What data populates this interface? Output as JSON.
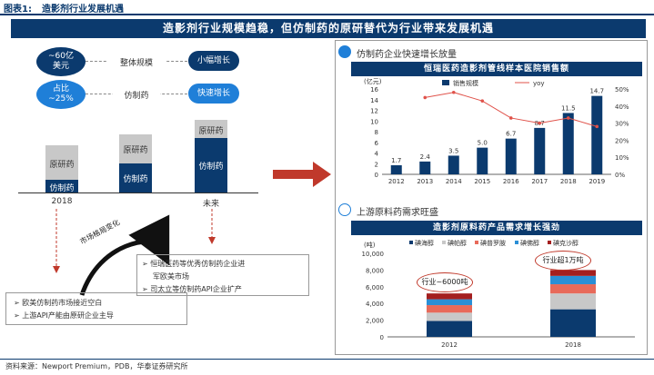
{
  "header": {
    "figure_label": "图表1:",
    "figure_title": "造影剂行业发展机遇",
    "banner": "造影剂行业规模趋稳，但仿制药的原研替代为行业带来发展机遇"
  },
  "left": {
    "oval_1": [
      "~60亿",
      "美元"
    ],
    "row_1_label": "整体规模",
    "pill_1": "小幅增长",
    "oval_2": [
      "占比",
      "~25%"
    ],
    "row_2_label": "仿制药",
    "pill_2": "快速增长",
    "bars": [
      {
        "x_label": "2018",
        "top_label": "原研药",
        "bottom_label": "仿制药"
      },
      {
        "x_label": "",
        "top_label": "原研药",
        "bottom_label": "仿制药"
      },
      {
        "x_label": "未来",
        "top_label": "原研药",
        "bottom_label": "仿制药"
      }
    ],
    "curve_label": "市场格局变化",
    "list_right": [
      "恒瑞医药等优秀仿制药企业进",
      "军欧美市场",
      "司太立等仿制药API企业扩产"
    ],
    "list_left": [
      "欧美仿制药市场接近空白",
      "上游API产能由原研企业主导"
    ],
    "bullet": "➢"
  },
  "right_top": {
    "section_title": "仿制药企业快速增长放量",
    "chart_title": "恒瑞医药造影剂管线样本医院销售额"
  },
  "right_bottom": {
    "section_title": "上游原料药需求旺盛",
    "chart_title": "造影剂原料药产品需求增长强劲",
    "callout_2012": "行业~6000吨",
    "callout_2018": "行业超1万吨"
  },
  "chart_data": [
    {
      "type": "bar",
      "title": "恒瑞医药造影剂管线样本医院销售额",
      "ylabel": "(亿元)",
      "categories": [
        "2012",
        "2013",
        "2014",
        "2015",
        "2016",
        "2017",
        "2018",
        "2019"
      ],
      "series": [
        {
          "name": "销售规模",
          "type": "bar",
          "axis": "left",
          "values": [
            1.7,
            2.4,
            3.5,
            5.0,
            6.7,
            8.7,
            11.5,
            14.7
          ],
          "color": "#0b3a6e"
        },
        {
          "name": "yoy",
          "type": "line",
          "axis": "right",
          "values": [
            null,
            0.45,
            0.48,
            0.43,
            0.33,
            0.3,
            0.33,
            0.28
          ],
          "color": "#e0524a"
        }
      ],
      "ylim": [
        0,
        16
      ],
      "yticks": [
        0,
        2,
        4,
        6,
        8,
        10,
        12,
        14,
        16
      ],
      "y2lim": [
        0,
        0.5
      ],
      "y2ticks": [
        "0%",
        "10%",
        "20%",
        "30%",
        "40%",
        "50%"
      ],
      "data_labels": [
        "1.7",
        "2.4",
        "3.5",
        "5.0",
        "6.7",
        "8.7",
        "11.5",
        "14.7"
      ],
      "legend": "top"
    },
    {
      "type": "bar",
      "title": "造影剂原料药产品需求增长强劲",
      "ylabel": "(吨)",
      "stacked": true,
      "categories": [
        "2012",
        "2018"
      ],
      "series": [
        {
          "name": "碘海醇",
          "values": [
            1900,
            3300
          ],
          "color": "#0b3a6e"
        },
        {
          "name": "碘帕醇",
          "values": [
            1000,
            1900
          ],
          "color": "#c8c8c8"
        },
        {
          "name": "碘普罗胺",
          "values": [
            900,
            1100
          ],
          "color": "#e86a5a"
        },
        {
          "name": "碘佛醇",
          "values": [
            700,
            1000
          ],
          "color": "#2a8fd6"
        },
        {
          "name": "碘克沙醇",
          "values": [
            700,
            700
          ],
          "color": "#a41f1f"
        }
      ],
      "ylim": [
        0,
        10000
      ],
      "yticks": [
        "0",
        "2,000",
        "4,000",
        "6,000",
        "8,000",
        "10,000"
      ],
      "legend": "top"
    }
  ],
  "footer": {
    "source": "资料来源：Newport Premium，PDB，华泰证券研究所"
  }
}
